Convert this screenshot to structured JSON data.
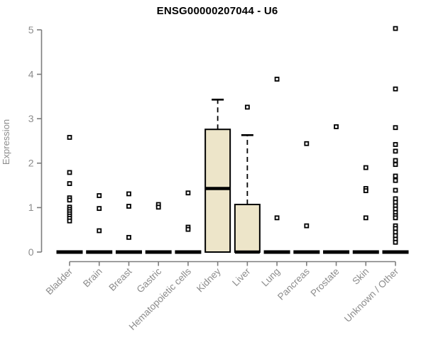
{
  "chart_data": {
    "type": "boxplot",
    "title": "ENSG00000207044 - U6",
    "ylabel": "Expression",
    "ylim": [
      0,
      5
    ],
    "yticks": [
      0,
      1,
      2,
      3,
      4,
      5
    ],
    "grid": false,
    "legend": "none",
    "marker": "open-square",
    "colors": {
      "box_fill": "#EDE5C9",
      "box_border": "#000000",
      "median": "#000000",
      "axis": "#7d7d7d",
      "tick_label": "#8c8c8c",
      "title": "#000000",
      "outlier": "#000000"
    },
    "categories": [
      "Bladder",
      "Brain",
      "Breast",
      "Gastric",
      "Hematopoietic cells",
      "Kidney",
      "Liver",
      "Lung",
      "Pancreas",
      "Prostate",
      "Skin",
      "Unknown / Other"
    ],
    "boxes": [
      {
        "category": "Bladder",
        "median": 0,
        "q1": 0,
        "q3": 0,
        "whisker_low": 0,
        "whisker_high": 0,
        "outliers": [
          2.58,
          1.79,
          1.54,
          1.22,
          1.17,
          1.01,
          0.96,
          0.91,
          0.86,
          0.81,
          0.76,
          0.7
        ]
      },
      {
        "category": "Brain",
        "median": 0,
        "q1": 0,
        "q3": 0,
        "whisker_low": 0,
        "whisker_high": 0,
        "outliers": [
          1.27,
          0.98,
          0.48
        ]
      },
      {
        "category": "Breast",
        "median": 0,
        "q1": 0,
        "q3": 0,
        "whisker_low": 0,
        "whisker_high": 0,
        "outliers": [
          1.31,
          1.03,
          0.33
        ]
      },
      {
        "category": "Gastric",
        "median": 0,
        "q1": 0,
        "q3": 0,
        "whisker_low": 0,
        "whisker_high": 0,
        "outliers": [
          1.07,
          1.01
        ]
      },
      {
        "category": "Hematopoietic cells",
        "median": 0,
        "q1": 0,
        "q3": 0,
        "whisker_low": 0,
        "whisker_high": 0,
        "outliers": [
          1.33,
          0.56,
          0.51
        ]
      },
      {
        "category": "Kidney",
        "median": 1.43,
        "q1": 0,
        "q3": 2.76,
        "whisker_low": 0,
        "whisker_high": 3.43,
        "outliers": []
      },
      {
        "category": "Liver",
        "median": 0,
        "q1": 0,
        "q3": 1.07,
        "whisker_low": 0,
        "whisker_high": 2.63,
        "outliers": [
          3.26
        ]
      },
      {
        "category": "Lung",
        "median": 0,
        "q1": 0,
        "q3": 0,
        "whisker_low": 0,
        "whisker_high": 0,
        "outliers": [
          3.89,
          0.77
        ]
      },
      {
        "category": "Pancreas",
        "median": 0,
        "q1": 0,
        "q3": 0,
        "whisker_low": 0,
        "whisker_high": 0,
        "outliers": [
          2.44,
          0.59
        ]
      },
      {
        "category": "Prostate",
        "median": 0,
        "q1": 0,
        "q3": 0,
        "whisker_low": 0,
        "whisker_high": 0,
        "outliers": [
          2.82
        ]
      },
      {
        "category": "Skin",
        "median": 0,
        "q1": 0,
        "q3": 0,
        "whisker_low": 0,
        "whisker_high": 0,
        "outliers": [
          1.9,
          1.43,
          1.38,
          0.77
        ]
      },
      {
        "category": "Unknown / Other",
        "median": 0,
        "q1": 0,
        "q3": 0,
        "whisker_low": 0,
        "whisker_high": 0,
        "outliers": [
          5.03,
          3.67,
          2.8,
          2.42,
          2.27,
          2.06,
          1.97,
          1.71,
          1.61,
          1.39,
          1.2,
          1.12,
          1.04,
          0.97,
          0.89,
          0.82,
          0.77,
          0.59,
          0.53,
          0.45,
          0.37,
          0.29,
          0.22
        ]
      }
    ]
  }
}
